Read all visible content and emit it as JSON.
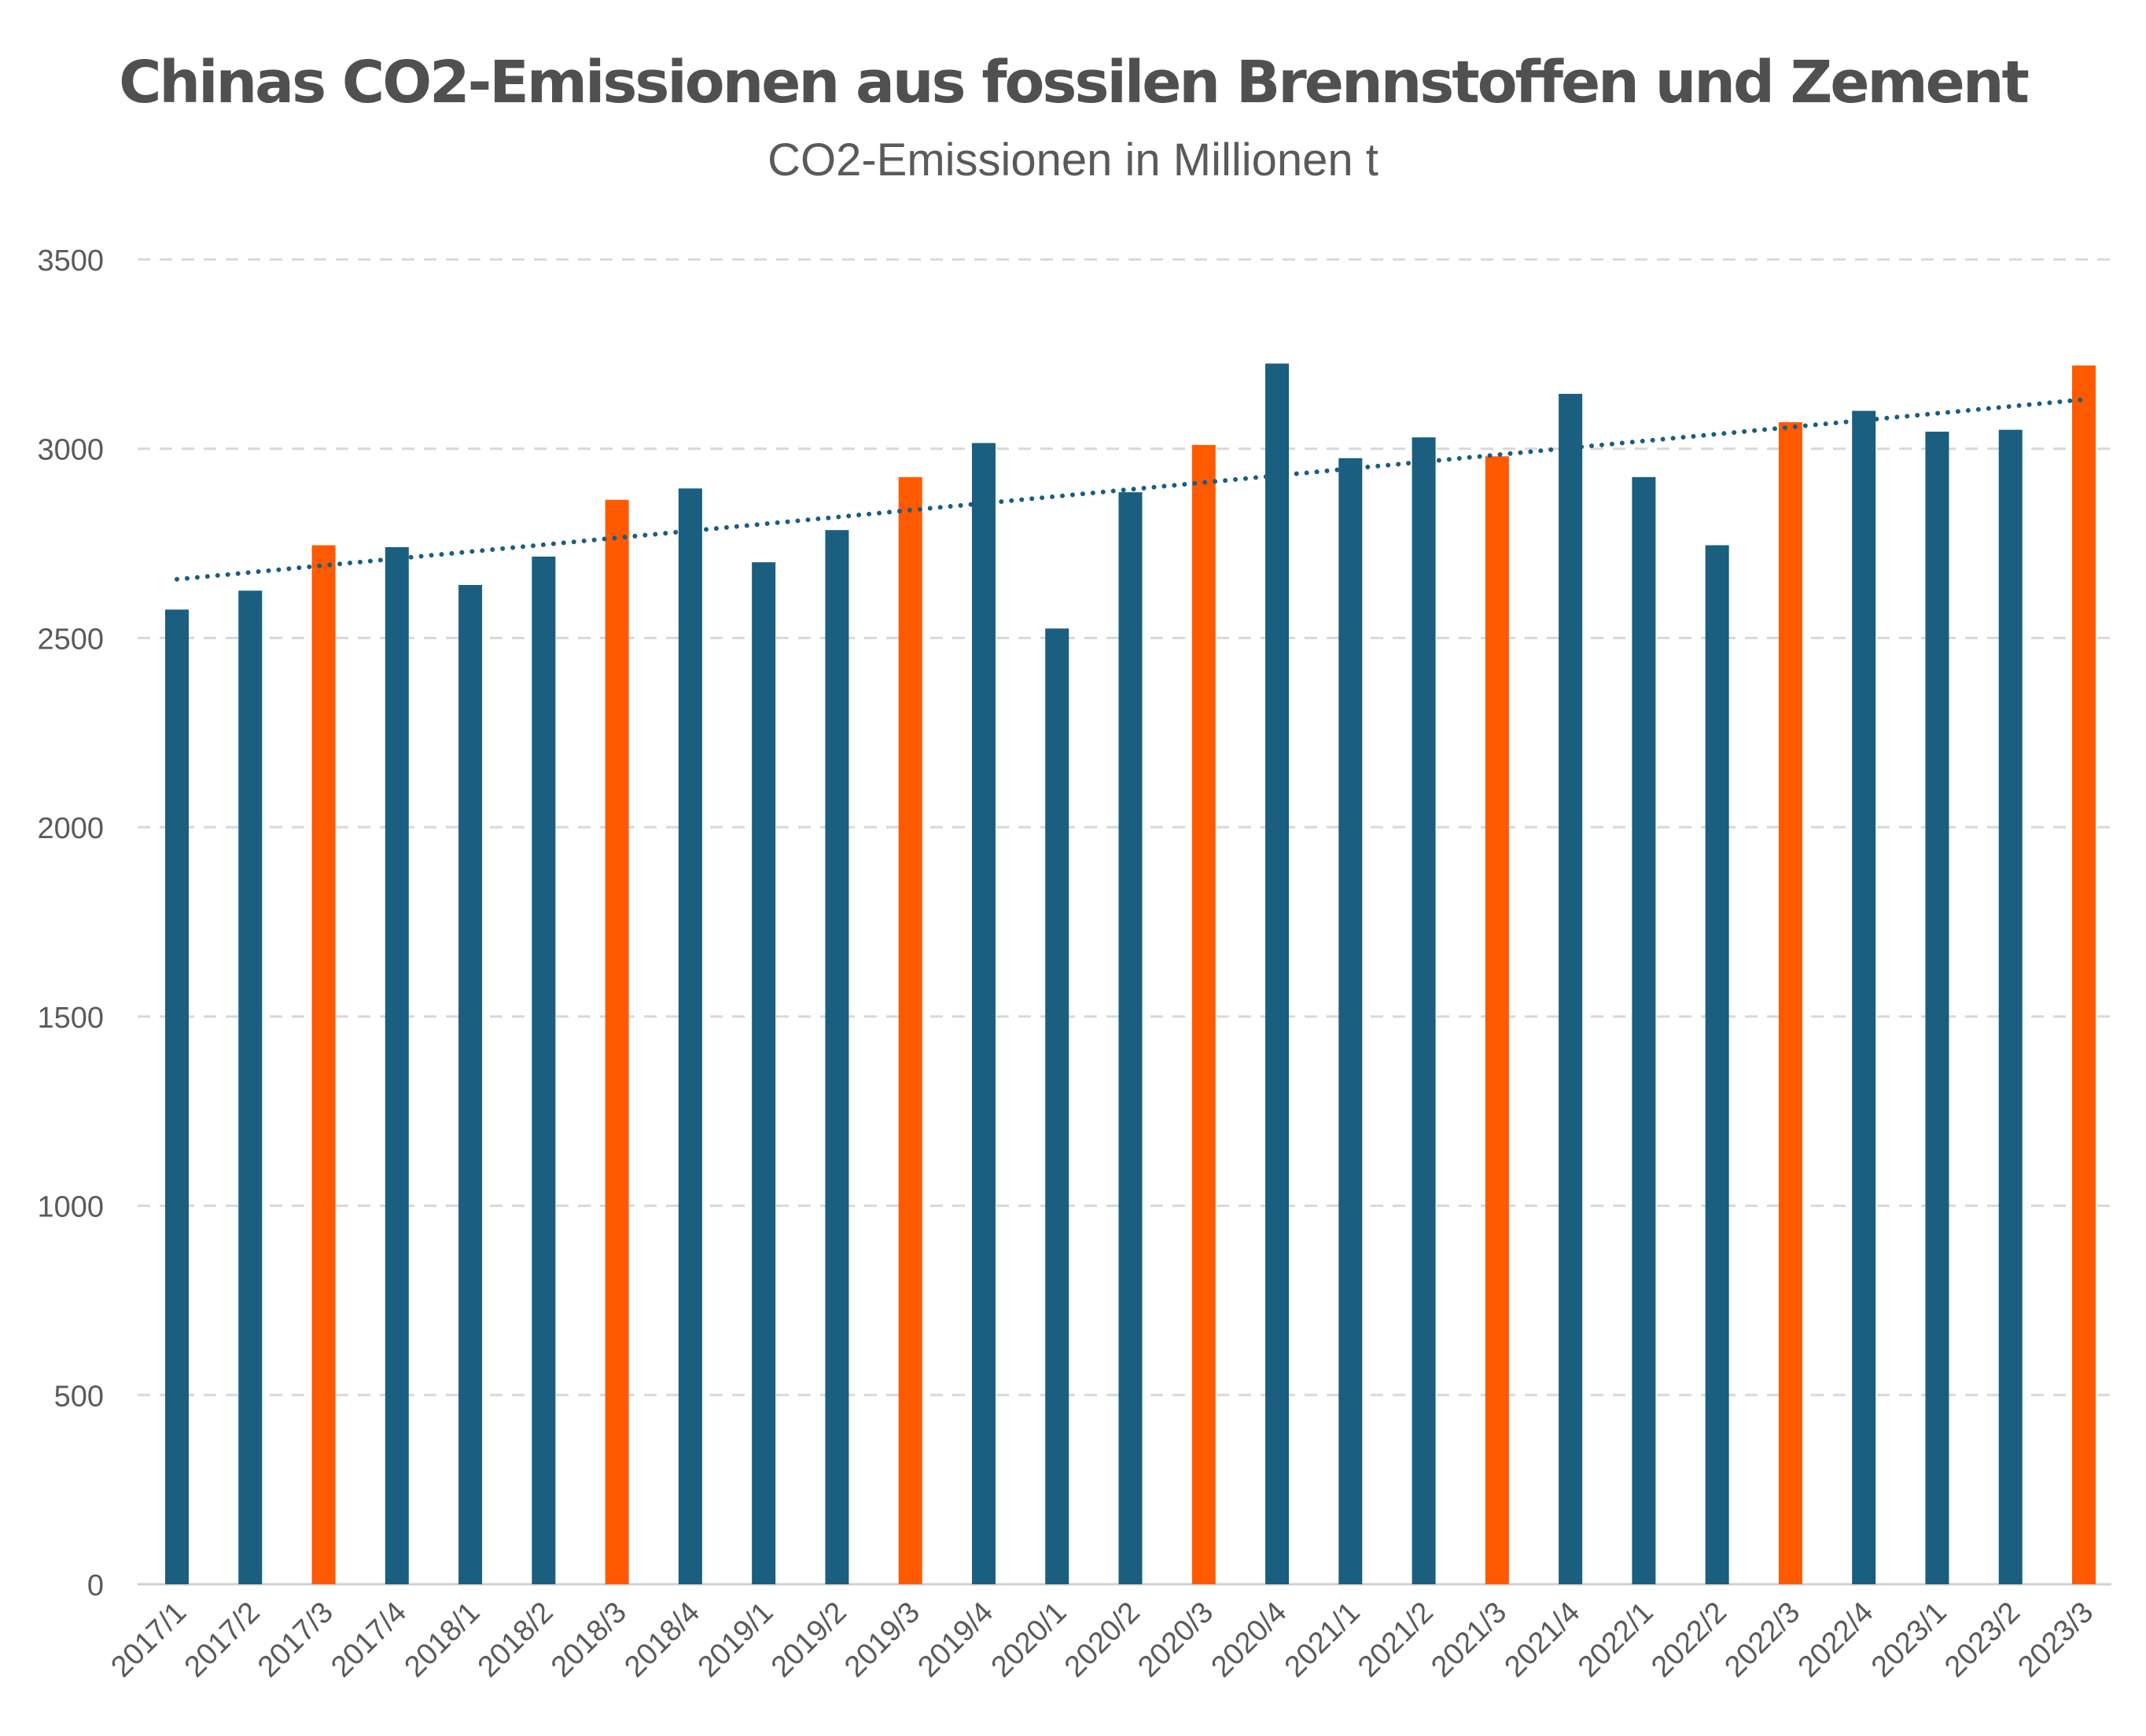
{
  "chart_data": {
    "type": "bar",
    "title": "Chinas CO2-Emissionen aus fossilen Brennstoffen und Zement",
    "subtitle": "CO2-Emissionen in Millionen t",
    "categories": [
      "2017/1",
      "2017/2",
      "2017/3",
      "2017/4",
      "2018/1",
      "2018/2",
      "2018/3",
      "2018/4",
      "2019/1",
      "2019/2",
      "2019/3",
      "2019/4",
      "2020/1",
      "2020/2",
      "2020/3",
      "2020/4",
      "2021/1",
      "2021/2",
      "2021/3",
      "2021/4",
      "2022/1",
      "2022/2",
      "2022/3",
      "2022/4",
      "2023/1",
      "2023/2",
      "2023/3"
    ],
    "values": [
      2575,
      2625,
      2745,
      2740,
      2640,
      2715,
      2865,
      2895,
      2700,
      2785,
      2925,
      3015,
      2525,
      2885,
      3010,
      3225,
      2975,
      3030,
      2980,
      3145,
      2925,
      2745,
      3070,
      3100,
      3045,
      3050,
      3220
    ],
    "highlighted": [
      false,
      false,
      true,
      false,
      false,
      false,
      true,
      false,
      false,
      false,
      true,
      false,
      false,
      false,
      true,
      false,
      false,
      false,
      true,
      false,
      false,
      false,
      true,
      false,
      false,
      false,
      true
    ],
    "ylim": [
      0,
      3500
    ],
    "yticks": [
      0,
      500,
      1000,
      1500,
      2000,
      2500,
      3000,
      3500
    ],
    "trendline": {
      "type": "linear",
      "start": 2655,
      "end": 3130,
      "style": "dotted"
    },
    "grid": true,
    "colors": {
      "bar": "#1a5e80",
      "highlight": "#ff5a00",
      "trend": "#1a5e80",
      "grid": "#d8d8d8",
      "text": "#5a5a5a"
    }
  }
}
